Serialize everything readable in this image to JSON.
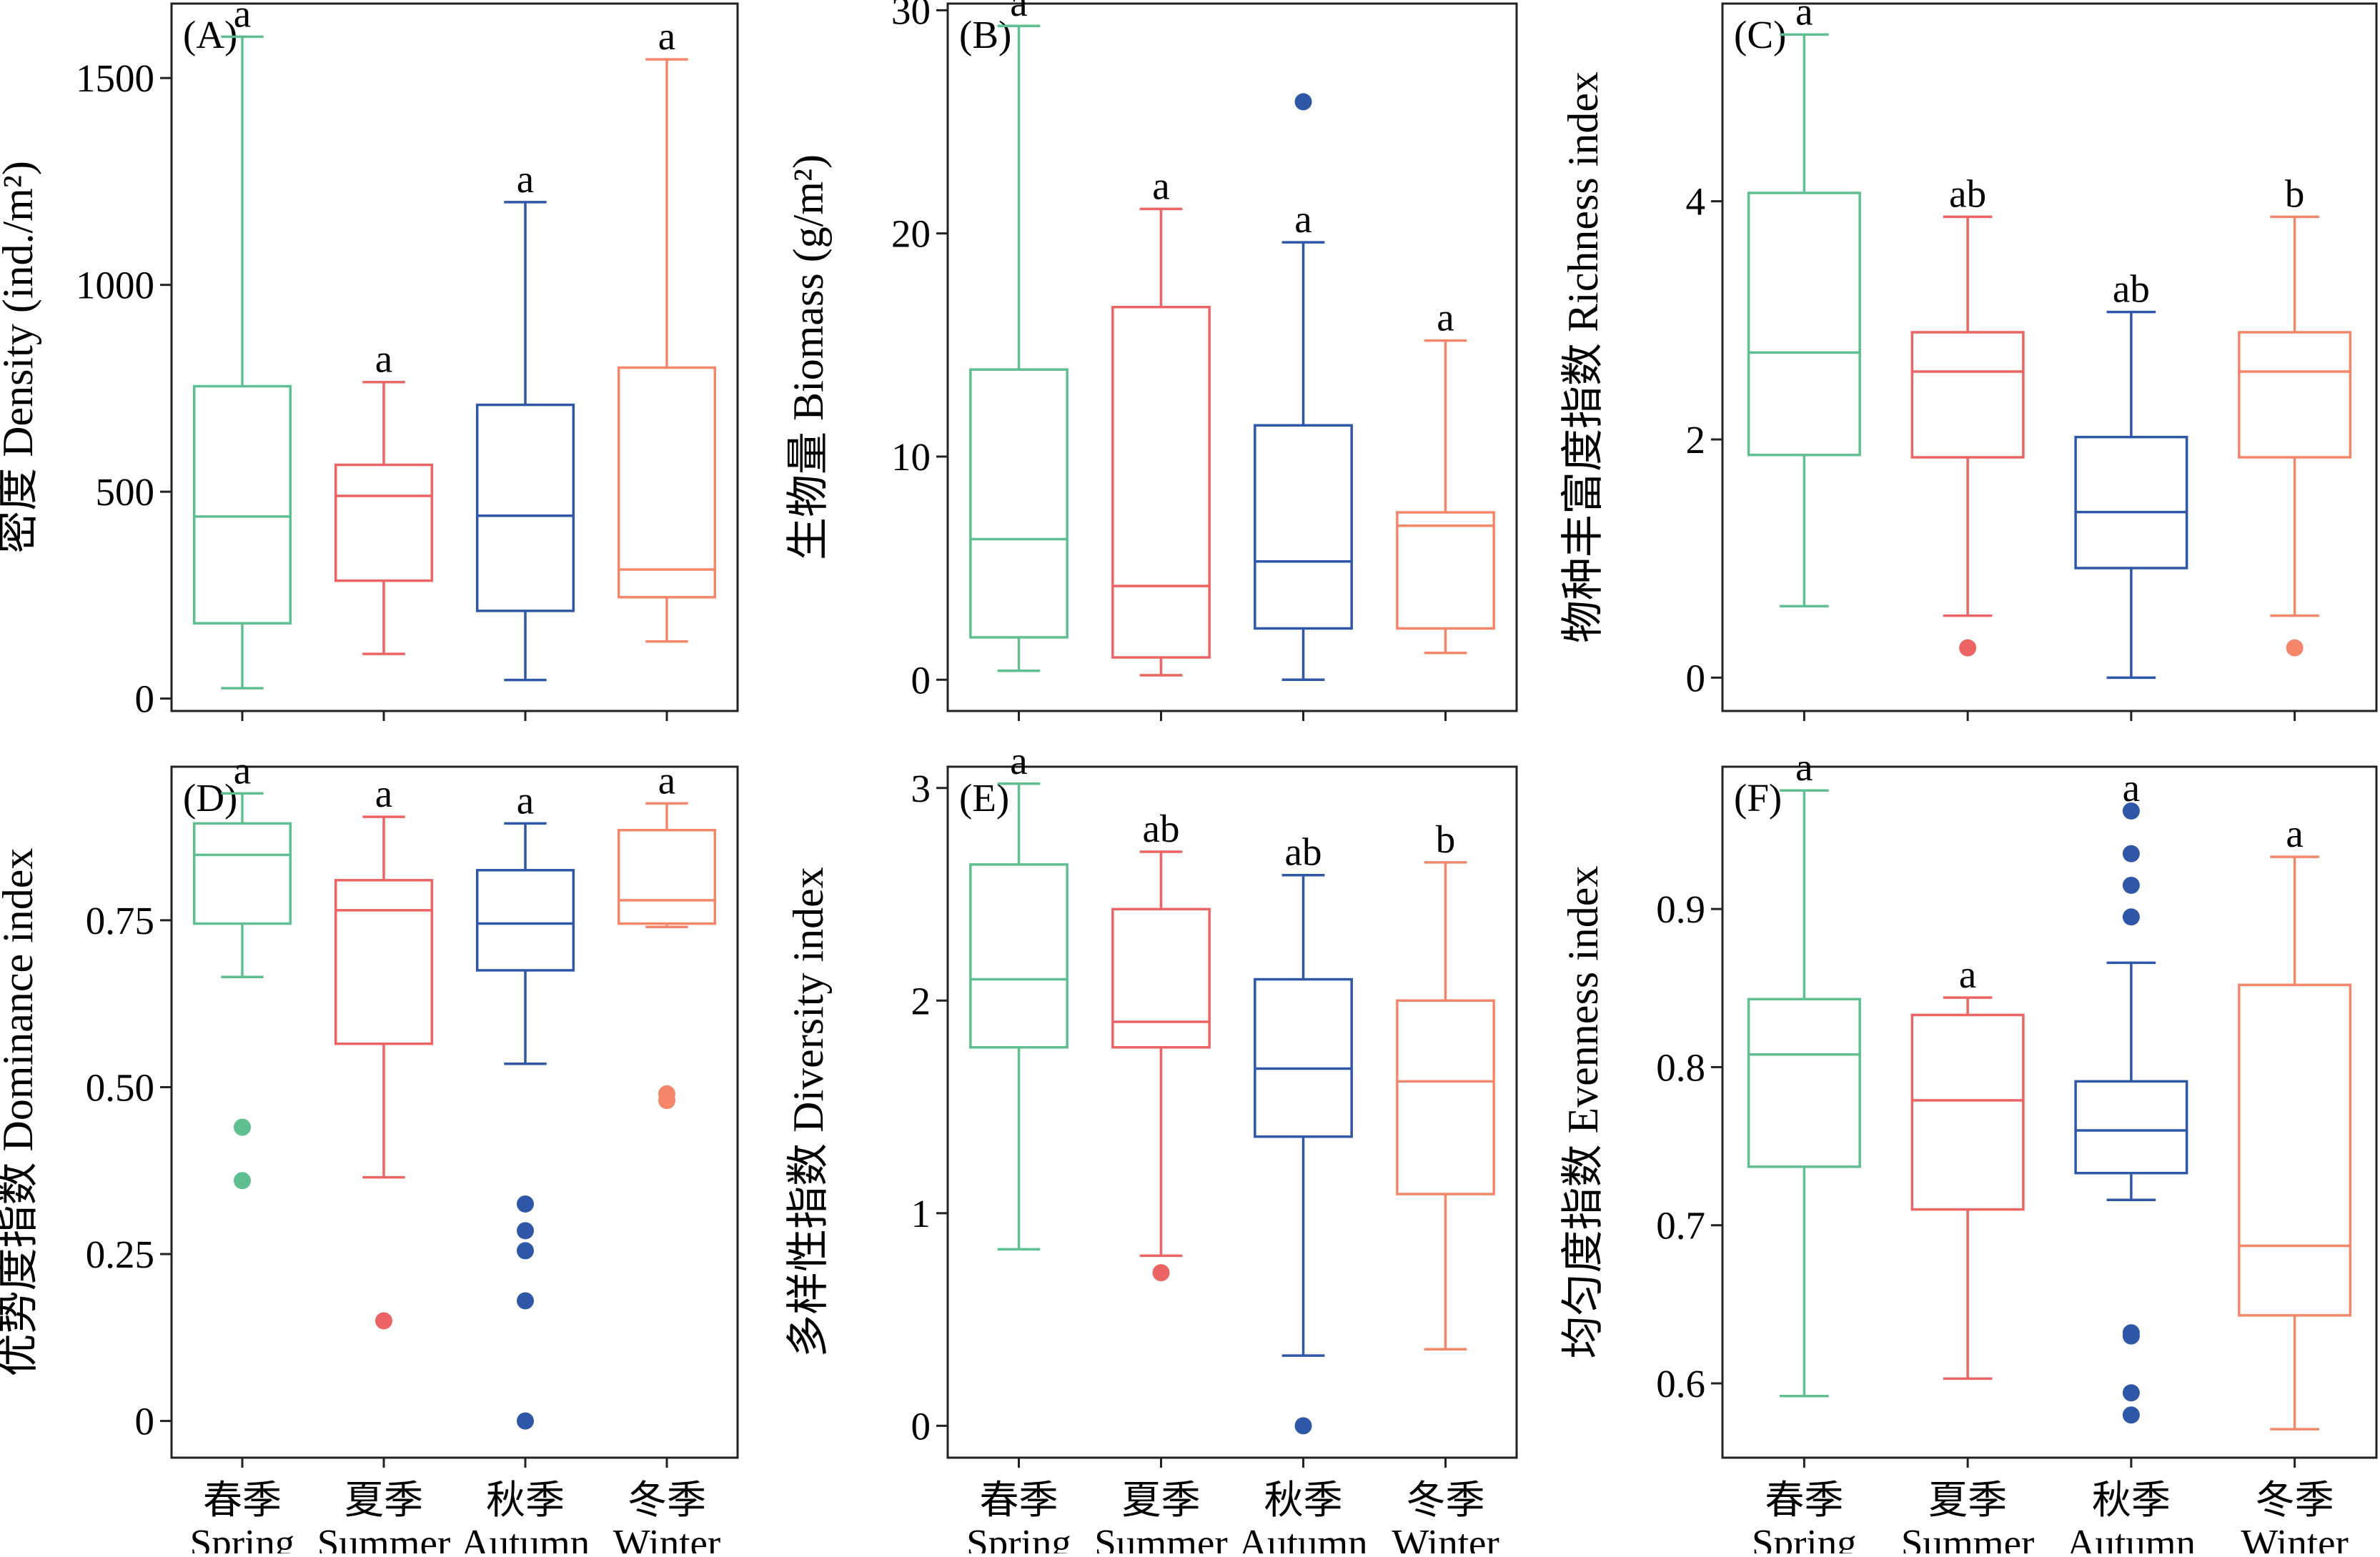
{
  "chart_data": [
    {
      "type": "box",
      "panel_label": "(A)",
      "ylabel": "密度 Density (ind./m²)",
      "ylim": [
        -30,
        1680
      ],
      "yticks": [
        0,
        500,
        1000,
        1500
      ],
      "show_xticklabels": false,
      "categories": [
        "春季 Spring",
        "夏季 Summer",
        "秋季 Autumn",
        "冬季 Winter"
      ],
      "series": [
        {
          "whisker_low": 25,
          "q1": 182,
          "median": 440,
          "q3": 755,
          "whisker_high": 1600,
          "outliers": [],
          "letter": "a"
        },
        {
          "whisker_low": 108,
          "q1": 285,
          "median": 490,
          "q3": 565,
          "whisker_high": 765,
          "outliers": [],
          "letter": "a"
        },
        {
          "whisker_low": 45,
          "q1": 212,
          "median": 442,
          "q3": 710,
          "whisker_high": 1200,
          "outliers": [],
          "letter": "a"
        },
        {
          "whisker_low": 138,
          "q1": 245,
          "median": 312,
          "q3": 800,
          "whisker_high": 1545,
          "outliers": [],
          "letter": "a"
        }
      ]
    },
    {
      "type": "box",
      "panel_label": "(B)",
      "ylabel": "生物量 Biomass (g/m²)",
      "ylim": [
        -1.4,
        30.3
      ],
      "yticks": [
        0,
        10,
        20,
        30
      ],
      "show_xticklabels": false,
      "categories": [
        "春季 Spring",
        "夏季 Summer",
        "秋季 Autumn",
        "冬季 Winter"
      ],
      "series": [
        {
          "whisker_low": 0.4,
          "q1": 1.9,
          "median": 6.3,
          "q3": 13.9,
          "whisker_high": 29.3,
          "outliers": [],
          "letter": "a"
        },
        {
          "whisker_low": 0.2,
          "q1": 1.0,
          "median": 4.2,
          "q3": 16.7,
          "whisker_high": 21.1,
          "outliers": [],
          "letter": "a"
        },
        {
          "whisker_low": 0.0,
          "q1": 2.3,
          "median": 5.3,
          "q3": 11.4,
          "whisker_high": 19.6,
          "outliers": [
            25.9
          ],
          "letter": "a"
        },
        {
          "whisker_low": 1.2,
          "q1": 2.3,
          "median": 6.9,
          "q3": 7.5,
          "whisker_high": 15.2,
          "outliers": [],
          "letter": "a"
        }
      ]
    },
    {
      "type": "box",
      "panel_label": "(C)",
      "ylabel": "物种丰富度指数 Richness index",
      "ylim": [
        -0.28,
        5.66
      ],
      "yticks": [
        0,
        2,
        4
      ],
      "show_xticklabels": false,
      "categories": [
        "春季 Spring",
        "夏季 Summer",
        "秋季 Autumn",
        "冬季 Winter"
      ],
      "series": [
        {
          "whisker_low": 0.6,
          "q1": 1.87,
          "median": 2.73,
          "q3": 4.07,
          "whisker_high": 5.4,
          "outliers": [],
          "letter": "a"
        },
        {
          "whisker_low": 0.52,
          "q1": 1.85,
          "median": 2.57,
          "q3": 2.9,
          "whisker_high": 3.87,
          "outliers": [
            0.25
          ],
          "letter": "ab"
        },
        {
          "whisker_low": 0.0,
          "q1": 0.92,
          "median": 1.39,
          "q3": 2.02,
          "whisker_high": 3.07,
          "outliers": [],
          "letter": "ab"
        },
        {
          "whisker_low": 0.52,
          "q1": 1.85,
          "median": 2.57,
          "q3": 2.9,
          "whisker_high": 3.87,
          "outliers": [
            0.25
          ],
          "letter": "b"
        }
      ]
    },
    {
      "type": "box",
      "panel_label": "(D)",
      "ylabel": "优势度指数 Dominance index",
      "ylim": [
        -0.055,
        0.98
      ],
      "yticks": [
        0,
        0.25,
        0.5,
        0.75
      ],
      "ytick_labels": [
        "0",
        "0.25",
        "0.50",
        "0.75"
      ],
      "show_xticklabels": true,
      "categories": [
        "春季 Spring",
        "夏季 Summer",
        "秋季 Autumn",
        "冬季 Winter"
      ],
      "series": [
        {
          "whisker_low": 0.665,
          "q1": 0.745,
          "median": 0.848,
          "q3": 0.895,
          "whisker_high": 0.94,
          "outliers": [
            0.44,
            0.36
          ],
          "letter": "a"
        },
        {
          "whisker_low": 0.365,
          "q1": 0.565,
          "median": 0.765,
          "q3": 0.81,
          "whisker_high": 0.905,
          "outliers": [
            0.15
          ],
          "letter": "a"
        },
        {
          "whisker_low": 0.535,
          "q1": 0.675,
          "median": 0.745,
          "q3": 0.825,
          "whisker_high": 0.895,
          "outliers": [
            0.325,
            0.285,
            0.255,
            0.18,
            0.0
          ],
          "letter": "a"
        },
        {
          "whisker_low": 0.74,
          "q1": 0.745,
          "median": 0.78,
          "q3": 0.885,
          "whisker_high": 0.925,
          "outliers": [
            0.49,
            0.48
          ],
          "letter": "a"
        }
      ]
    },
    {
      "type": "box",
      "panel_label": "(E)",
      "ylabel": "多样性指数 Diversity index",
      "ylim": [
        -0.15,
        3.1
      ],
      "yticks": [
        0,
        1,
        2,
        3
      ],
      "show_xticklabels": true,
      "categories": [
        "春季 Spring",
        "夏季 Summer",
        "秋季 Autumn",
        "冬季 Winter"
      ],
      "series": [
        {
          "whisker_low": 0.83,
          "q1": 1.78,
          "median": 2.1,
          "q3": 2.64,
          "whisker_high": 3.02,
          "outliers": [],
          "letter": "a"
        },
        {
          "whisker_low": 0.8,
          "q1": 1.78,
          "median": 1.9,
          "q3": 2.43,
          "whisker_high": 2.7,
          "outliers": [
            0.72
          ],
          "letter": "ab"
        },
        {
          "whisker_low": 0.33,
          "q1": 1.36,
          "median": 1.68,
          "q3": 2.1,
          "whisker_high": 2.59,
          "outliers": [
            0.0
          ],
          "letter": "ab"
        },
        {
          "whisker_low": 0.36,
          "q1": 1.09,
          "median": 1.62,
          "q3": 2.0,
          "whisker_high": 2.65,
          "outliers": [],
          "letter": "b"
        }
      ]
    },
    {
      "type": "box",
      "panel_label": "(F)",
      "ylabel": "均匀度指数 Evenness index",
      "ylim": [
        0.553,
        0.99
      ],
      "yticks": [
        0.6,
        0.7,
        0.8,
        0.9
      ],
      "show_xticklabels": true,
      "categories": [
        "春季 Spring",
        "夏季 Summer",
        "秋季 Autumn",
        "冬季 Winter"
      ],
      "series": [
        {
          "whisker_low": 0.592,
          "q1": 0.737,
          "median": 0.808,
          "q3": 0.843,
          "whisker_high": 0.975,
          "outliers": [],
          "letter": "a"
        },
        {
          "whisker_low": 0.603,
          "q1": 0.71,
          "median": 0.779,
          "q3": 0.833,
          "whisker_high": 0.844,
          "outliers": [],
          "letter": "a"
        },
        {
          "whisker_low": 0.716,
          "q1": 0.733,
          "median": 0.76,
          "q3": 0.791,
          "whisker_high": 0.866,
          "outliers": [
            0.962,
            0.935,
            0.915,
            0.895,
            0.632,
            0.63,
            0.594,
            0.58
          ],
          "letter": "a"
        },
        {
          "whisker_low": 0.571,
          "q1": 0.643,
          "median": 0.687,
          "q3": 0.852,
          "whisker_high": 0.933,
          "outliers": [],
          "letter": "a"
        }
      ]
    }
  ],
  "season_colors": [
    "#5FBF8F",
    "#EC6464",
    "#2E57A8",
    "#F4876A"
  ],
  "x_labels": [
    {
      "cn": "春季",
      "en": "Spring"
    },
    {
      "cn": "夏季",
      "en": "Summer"
    },
    {
      "cn": "秋季",
      "en": "Autumn"
    },
    {
      "cn": "冬季",
      "en": "Winter"
    }
  ]
}
